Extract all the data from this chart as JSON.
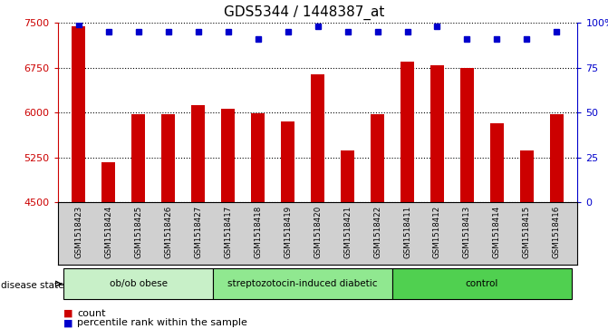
{
  "title": "GDS5344 / 1448387_at",
  "categories": [
    "GSM1518423",
    "GSM1518424",
    "GSM1518425",
    "GSM1518426",
    "GSM1518427",
    "GSM1518417",
    "GSM1518418",
    "GSM1518419",
    "GSM1518420",
    "GSM1518421",
    "GSM1518422",
    "GSM1518411",
    "GSM1518412",
    "GSM1518413",
    "GSM1518414",
    "GSM1518415",
    "GSM1518416"
  ],
  "bar_values": [
    7450,
    5170,
    5980,
    5980,
    6120,
    6060,
    5990,
    5850,
    6640,
    5370,
    5970,
    6860,
    6800,
    6750,
    5820,
    5370,
    5970
  ],
  "percentile_values": [
    99,
    95,
    95,
    95,
    95,
    95,
    91,
    95,
    98,
    95,
    95,
    95,
    98,
    91,
    91,
    91,
    95
  ],
  "bar_color": "#cc0000",
  "dot_color": "#0000cc",
  "ylim_left": [
    4500,
    7500
  ],
  "ylim_right": [
    0,
    100
  ],
  "yticks_left": [
    4500,
    5250,
    6000,
    6750,
    7500
  ],
  "yticks_right": [
    0,
    25,
    50,
    75,
    100
  ],
  "groups": [
    {
      "label": "ob/ob obese",
      "start": 0,
      "end": 4,
      "color": "#c8f0c8"
    },
    {
      "label": "streptozotocin-induced diabetic",
      "start": 5,
      "end": 10,
      "color": "#90e890"
    },
    {
      "label": "control",
      "start": 11,
      "end": 16,
      "color": "#50d050"
    }
  ],
  "disease_state_label": "disease state",
  "legend_count_label": "count",
  "legend_pct_label": "percentile rank within the sample",
  "xtick_bg": "#d0d0d0",
  "plot_bg": "#ffffff"
}
